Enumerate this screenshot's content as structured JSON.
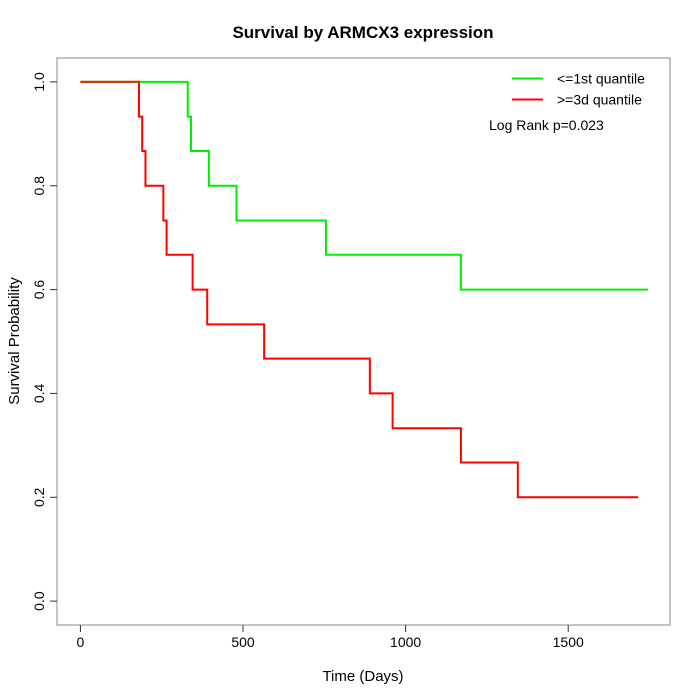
{
  "chart_data": {
    "type": "line",
    "subtype": "kaplan-meier-step",
    "title": "Survival by ARMCX3 expression",
    "xlabel": "Time (Days)",
    "ylabel": "Survival Probability",
    "x_tick_labels": [
      "0",
      "500",
      "1000",
      "1500"
    ],
    "x_tick_values": [
      0,
      500,
      1000,
      1500
    ],
    "y_tick_labels": [
      "0.0",
      "0.2",
      "0.4",
      "0.6",
      "0.8",
      "1.0"
    ],
    "y_tick_values": [
      0.0,
      0.2,
      0.4,
      0.6,
      0.8,
      1.0
    ],
    "xlim": [
      -72,
      1813
    ],
    "ylim": [
      -0.046,
      1.046
    ],
    "grid": false,
    "legend_position": "top-right",
    "annotation": "Log Rank p=0.023",
    "p_value": 0.023,
    "series": [
      {
        "name": "<=1st quantile",
        "color": "#00ee00",
        "steps": [
          [
            0,
            1.0
          ],
          [
            330,
            0.933
          ],
          [
            340,
            0.867
          ],
          [
            395,
            0.8
          ],
          [
            480,
            0.733
          ],
          [
            755,
            0.667
          ],
          [
            1170,
            0.6
          ]
        ],
        "end_time": 1745
      },
      {
        "name": ">=3d quantile",
        "color": "#ff0000",
        "steps": [
          [
            0,
            1.0
          ],
          [
            180,
            0.933
          ],
          [
            190,
            0.867
          ],
          [
            200,
            0.8
          ],
          [
            255,
            0.733
          ],
          [
            265,
            0.667
          ],
          [
            345,
            0.6
          ],
          [
            390,
            0.533
          ],
          [
            565,
            0.467
          ],
          [
            890,
            0.4
          ],
          [
            960,
            0.333
          ],
          [
            1170,
            0.267
          ],
          [
            1345,
            0.2
          ]
        ],
        "end_time": 1715
      }
    ],
    "overlap_segment": {
      "time_range": [
        0,
        180
      ],
      "survival": 1.0,
      "color": "#c63c0a"
    },
    "colors": {
      "box": "#888888",
      "axis": "#444444",
      "tick": "#333333",
      "text": "#000000"
    }
  }
}
